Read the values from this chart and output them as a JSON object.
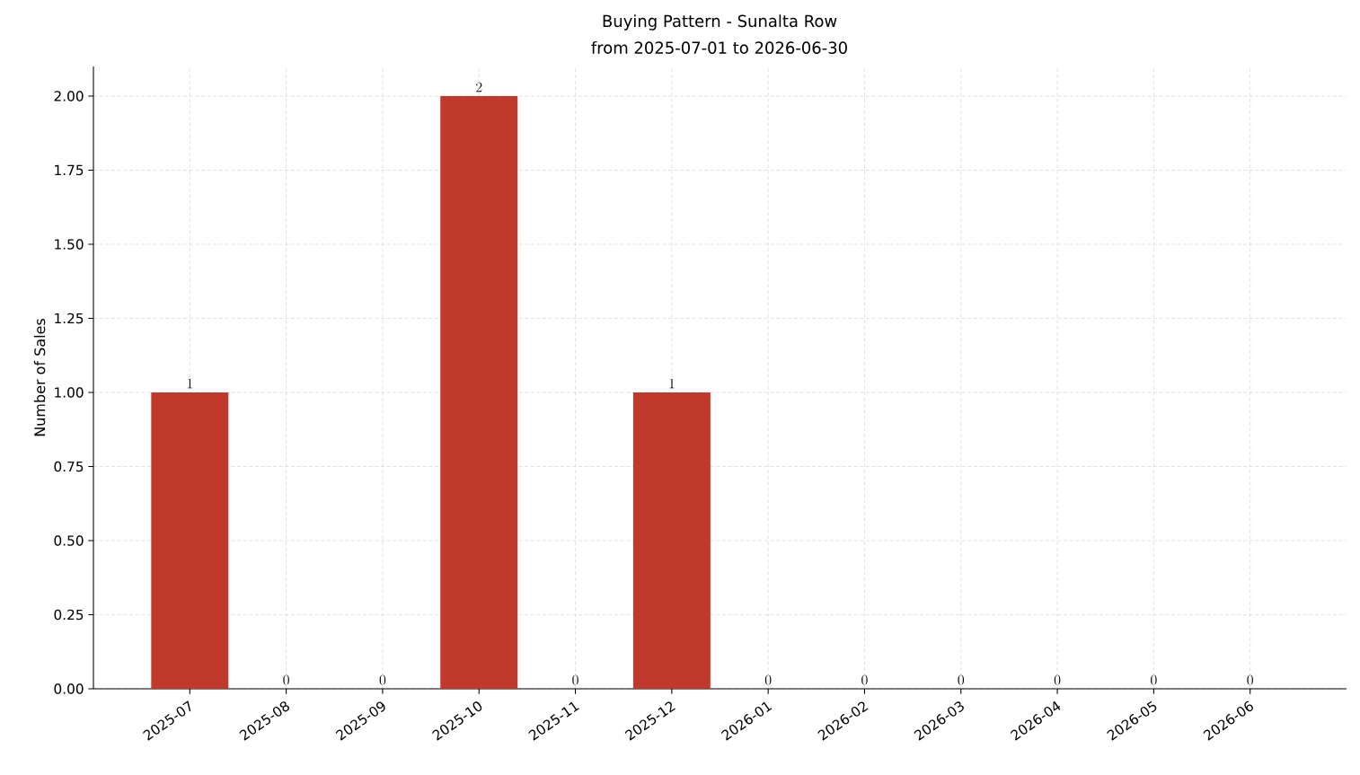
{
  "chart_data": {
    "type": "bar",
    "title": "Buying Pattern - Sunalta Row",
    "subtitle": "from 2025-07-01 to 2026-06-30",
    "ylabel": "Number of Sales",
    "categories": [
      "2025-07",
      "2025-08",
      "2025-09",
      "2025-10",
      "2025-11",
      "2025-12",
      "2026-01",
      "2026-02",
      "2026-03",
      "2026-04",
      "2026-05",
      "2026-06"
    ],
    "values": [
      1,
      0,
      0,
      2,
      0,
      1,
      0,
      0,
      0,
      0,
      0,
      0
    ],
    "color": "#c0392b",
    "ylim": [
      0,
      2.1
    ],
    "yticks": [
      {
        "value": 0,
        "label": "0.00"
      },
      {
        "value": 0.25,
        "label": "0.25"
      },
      {
        "value": 0.5,
        "label": "0.50"
      },
      {
        "value": 0.75,
        "label": "0.75"
      },
      {
        "value": 1,
        "label": "1.00"
      },
      {
        "value": 1.25,
        "label": "1.25"
      },
      {
        "value": 1.5,
        "label": "1.50"
      },
      {
        "value": 1.75,
        "label": "1.75"
      },
      {
        "value": 2,
        "label": "2.00"
      }
    ],
    "grid": true,
    "data_labels": true
  }
}
